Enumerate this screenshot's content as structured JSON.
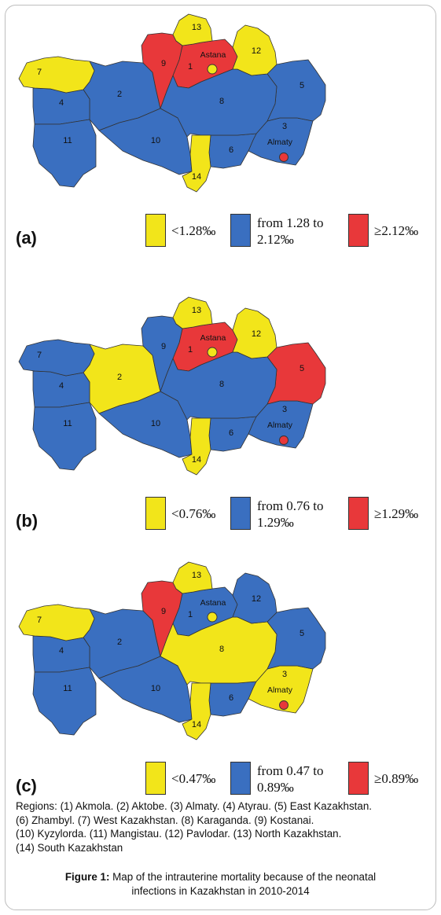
{
  "colors": {
    "yellow": "#f2e51a",
    "blue": "#3a6fc0",
    "red": "#e8383a",
    "border": "#333333"
  },
  "regions": [
    {
      "id": "1",
      "name": "Akmola"
    },
    {
      "id": "2",
      "name": "Aktobe"
    },
    {
      "id": "3",
      "name": "Almaty"
    },
    {
      "id": "4",
      "name": "Atyrau"
    },
    {
      "id": "5",
      "name": "East Kazakhstan"
    },
    {
      "id": "6",
      "name": "Zhambyl"
    },
    {
      "id": "7",
      "name": "West Kazakhstan"
    },
    {
      "id": "8",
      "name": "Karaganda"
    },
    {
      "id": "9",
      "name": "Kostanai"
    },
    {
      "id": "10",
      "name": "Kyzylorda"
    },
    {
      "id": "11",
      "name": "Mangistau"
    },
    {
      "id": "12",
      "name": "Pavlodar"
    },
    {
      "id": "13",
      "name": "North Kazakhstan"
    },
    {
      "id": "14",
      "name": "South Kazakhstan"
    }
  ],
  "cities": {
    "astana": "Astana",
    "almaty": "Almaty"
  },
  "panels": [
    {
      "label": "(a)",
      "legend": {
        "low": "<1.28‰",
        "mid_line1": "from 1.28 to",
        "mid_line2": "2.12‰",
        "high": "≥2.12‰"
      },
      "fill": {
        "1": "red",
        "2": "blue",
        "3": "blue",
        "4": "blue",
        "5": "blue",
        "6": "blue",
        "7": "yellow",
        "8": "blue",
        "9": "red",
        "10": "blue",
        "11": "blue",
        "12": "yellow",
        "13": "yellow",
        "14": "yellow"
      },
      "astana_fill": "yellow",
      "almaty_fill": "red"
    },
    {
      "label": "(b)",
      "legend": {
        "low": "<0.76‰",
        "mid_line1": "from 0.76 to",
        "mid_line2": "1.29‰",
        "high": "≥1.29‰"
      },
      "fill": {
        "1": "red",
        "2": "yellow",
        "3": "blue",
        "4": "blue",
        "5": "red",
        "6": "blue",
        "7": "blue",
        "8": "blue",
        "9": "blue",
        "10": "blue",
        "11": "blue",
        "12": "yellow",
        "13": "yellow",
        "14": "yellow"
      },
      "astana_fill": "yellow",
      "almaty_fill": "red"
    },
    {
      "label": "(c)",
      "legend": {
        "low": "<0.47‰",
        "mid_line1": "from 0.47 to",
        "mid_line2": "0.89‰",
        "high": "≥0.89‰"
      },
      "fill": {
        "1": "blue",
        "2": "blue",
        "3": "yellow",
        "4": "blue",
        "5": "blue",
        "6": "blue",
        "7": "yellow",
        "8": "yellow",
        "9": "red",
        "10": "blue",
        "11": "blue",
        "12": "blue",
        "13": "yellow",
        "14": "yellow"
      },
      "astana_fill": "yellow",
      "almaty_fill": "red"
    }
  ],
  "regions_note": {
    "line1": "Regions: (1) Akmola. (2) Aktobe. (3) Almaty. (4) Atyrau. (5) East Kazakhstan.",
    "line2": "(6) Zhambyl. (7) West Kazakhstan. (8) Karaganda. (9) Kostanai.",
    "line3": "(10) Kyzylorda. (11) Mangistau. (12) Pavlodar. (13) North Kazakhstan.",
    "line4": "(14) South Kazakhstan"
  },
  "caption": {
    "label": "Figure 1:",
    "line1": " Map of the intrauterine mortality because of the neonatal",
    "line2": "infections in Kazakhstan in 2010-2014"
  }
}
